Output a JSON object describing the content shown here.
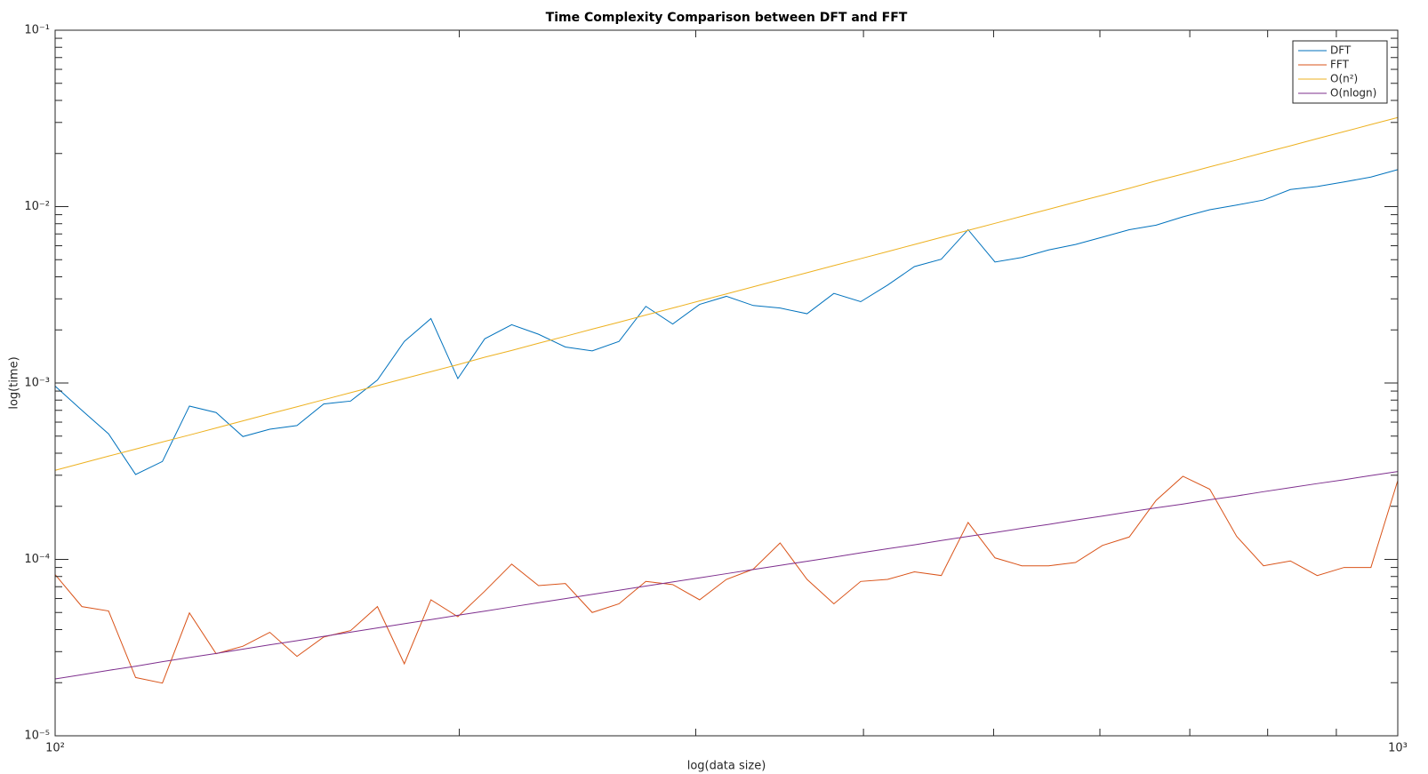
{
  "chart_data": {
    "type": "line",
    "title": "Time Complexity Comparison between DFT and FFT",
    "xlabel": "log(data size)",
    "ylabel": "log(time)",
    "xscale": "log",
    "yscale": "log",
    "legend": "northeast",
    "x": [
      100,
      104.7,
      109.6,
      114.8,
      120.2,
      125.9,
      131.8,
      138,
      144.5,
      151.4,
      158.5,
      166,
      173.8,
      182,
      190.5,
      199.5,
      208.9,
      218.8,
      229.1,
      239.9,
      251.2,
      263,
      275.4,
      288.4,
      302,
      316.2,
      331.1,
      346.7,
      363.1,
      380.2,
      398.1,
      416.9,
      436.5,
      457.1,
      478.6,
      501.2,
      524.8,
      549.5,
      575.4,
      602.6,
      631,
      660.7,
      691.8,
      724.4,
      758.6,
      794.3,
      831.8,
      871,
      912,
      955,
      1000
    ],
    "series": [
      {
        "name": "DFT",
        "color": "#0072bd",
        "values": [
          0.00096,
          0.0007,
          0.000515,
          0.000303,
          0.000359,
          0.00074,
          0.00068,
          0.000497,
          0.000547,
          0.000574,
          0.00076,
          0.00079,
          0.00104,
          0.00172,
          0.00232,
          0.00106,
          0.00178,
          0.00214,
          0.00189,
          0.0016,
          0.00152,
          0.00172,
          0.00272,
          0.00216,
          0.00279,
          0.0031,
          0.00275,
          0.00266,
          0.00247,
          0.00322,
          0.00289,
          0.00359,
          0.00457,
          0.00503,
          0.0074,
          0.00485,
          0.00515,
          0.00568,
          0.0061,
          0.00671,
          0.0074,
          0.00785,
          0.00875,
          0.0096,
          0.0102,
          0.0109,
          0.0125,
          0.013,
          0.0138,
          0.0147,
          0.0162
        ]
      },
      {
        "name": "FFT",
        "color": "#d95319",
        "values": [
          8.2e-05,
          5.4e-05,
          5.1e-05,
          2.14e-05,
          1.99e-05,
          4.97e-05,
          2.92e-05,
          3.22e-05,
          3.86e-05,
          2.82e-05,
          3.63e-05,
          3.95e-05,
          5.4e-05,
          2.56e-05,
          5.9e-05,
          4.73e-05,
          6.6e-05,
          9.4e-05,
          7.1e-05,
          7.3e-05,
          5e-05,
          5.6e-05,
          7.5e-05,
          7.2e-05,
          5.9e-05,
          7.7e-05,
          8.8e-05,
          0.000124,
          7.7e-05,
          5.6e-05,
          7.5e-05,
          7.7e-05,
          8.5e-05,
          8.1e-05,
          0.000162,
          0.000102,
          9.2e-05,
          9.2e-05,
          9.6e-05,
          0.00012,
          0.000134,
          0.000216,
          0.000296,
          0.00025,
          0.000135,
          9.2e-05,
          9.8e-05,
          8.1e-05,
          9e-05,
          9e-05,
          0.00028
        ]
      },
      {
        "name": "O(n²)",
        "color": "#edb120",
        "values": [
          0.00032,
          0.000351,
          0.000385,
          0.000422,
          0.000463,
          0.000507,
          0.000556,
          0.00061,
          0.000669,
          0.000733,
          0.000804,
          0.000881,
          0.000966,
          0.00106,
          0.00116,
          0.00127,
          0.0014,
          0.00153,
          0.00168,
          0.00184,
          0.00202,
          0.00221,
          0.00243,
          0.00266,
          0.00292,
          0.0032,
          0.00351,
          0.00385,
          0.00422,
          0.00463,
          0.00507,
          0.00556,
          0.0061,
          0.00669,
          0.00733,
          0.00804,
          0.00881,
          0.00966,
          0.0106,
          0.0116,
          0.0127,
          0.014,
          0.0153,
          0.0168,
          0.0184,
          0.0202,
          0.0221,
          0.0243,
          0.0266,
          0.0292,
          0.032
        ]
      },
      {
        "name": "O(nlogn)",
        "color": "#7e2f8e",
        "values": [
          2.1e-05,
          2.22e-05,
          2.35e-05,
          2.48e-05,
          2.63e-05,
          2.78e-05,
          2.93e-05,
          3.1e-05,
          3.28e-05,
          3.46e-05,
          3.66e-05,
          3.87e-05,
          4.09e-05,
          4.32e-05,
          4.56e-05,
          4.82e-05,
          5.09e-05,
          5.38e-05,
          5.68e-05,
          5.99e-05,
          6.33e-05,
          6.68e-05,
          7.06e-05,
          7.45e-05,
          7.86e-05,
          8.3e-05,
          8.76e-05,
          9.25e-05,
          9.76e-05,
          0.000103,
          0.000109,
          0.000115,
          0.000121,
          0.000128,
          0.000135,
          0.000142,
          0.00015,
          0.000158,
          0.000167,
          0.000176,
          0.000186,
          0.000196,
          0.000206,
          0.000218,
          0.000229,
          0.000242,
          0.000255,
          0.000269,
          0.000283,
          0.000299,
          0.000315
        ]
      }
    ],
    "xlim": [
      100,
      1000
    ],
    "ylim": [
      1e-05,
      0.1
    ],
    "xticks": [
      {
        "value": 100,
        "label": "10²"
      },
      {
        "value": 1000,
        "label": "10³"
      }
    ],
    "yticks": [
      {
        "value": 1e-05,
        "label": "10⁻⁵"
      },
      {
        "value": 0.0001,
        "label": "10⁻⁴"
      },
      {
        "value": 0.001,
        "label": "10⁻³"
      },
      {
        "value": 0.01,
        "label": "10⁻²"
      },
      {
        "value": 0.1,
        "label": "10⁻¹"
      }
    ],
    "xminorticks": [
      200,
      300,
      400,
      500,
      600,
      700,
      800,
      900
    ],
    "yminorticks": [
      2e-05,
      3e-05,
      4e-05,
      5e-05,
      6e-05,
      7e-05,
      8e-05,
      9e-05,
      0.0002,
      0.0003,
      0.0004,
      0.0005,
      0.0006,
      0.0007,
      0.0008,
      0.0009,
      0.002,
      0.003,
      0.004,
      0.005,
      0.006,
      0.007,
      0.008,
      0.009,
      0.02,
      0.03,
      0.04,
      0.05,
      0.06,
      0.07,
      0.08,
      0.09
    ],
    "grid": false
  }
}
